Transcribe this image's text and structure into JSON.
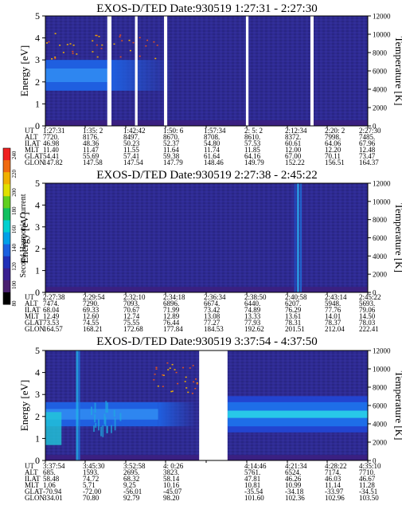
{
  "colorbar": {
    "label": "Second Harmonic Current",
    "ticks": [
      "240",
      "220",
      "200",
      "180",
      "160",
      "140",
      "120",
      "100",
      "80"
    ],
    "colors": [
      "#f02020",
      "#f06a10",
      "#f0b000",
      "#e0e000",
      "#60d020",
      "#10c060",
      "#00d0d0",
      "#00a0e8",
      "#1a60e0",
      "#2030b8",
      "#3a2090",
      "#4a2070",
      "#000000"
    ]
  },
  "chart_data": [
    {
      "type": "heatmap",
      "title": "EXOS-D/TED   Date:930519   1:27:31 - 2:27:30",
      "ylabel": "Energy [eV]",
      "y2label": "Temperature [K]",
      "ylim": [
        0,
        5
      ],
      "y2lim": [
        0,
        12000
      ],
      "yticks": [
        "0",
        "1",
        "2",
        "3",
        "4",
        "5"
      ],
      "y2ticks": [
        "0",
        "2000",
        "4000",
        "6000",
        "8000",
        "10000",
        "12000"
      ],
      "gaps": [
        [
          0.192,
          0.205
        ],
        [
          0.278,
          0.286
        ],
        [
          0.368,
          0.378
        ],
        [
          0.622,
          0.63
        ],
        [
          0.822,
          0.832
        ]
      ],
      "band": {
        "center_ev": 2.3,
        "width_ev": 1.4,
        "fade_start": 0.2,
        "fade_end": 0.4
      },
      "rows": [
        {
          "label": "UT",
          "values": [
            "1:27:31",
            "1:35: 2",
            "1:42:42",
            "1:50: 6",
            "1:57:34",
            "2: 5: 2",
            "2:12:34",
            "2:20: 2",
            "2:27:30"
          ]
        },
        {
          "label": "ALT",
          "values": [
            "7720.",
            "8176.",
            "8497.",
            "8670.",
            "8708.",
            "8610.",
            "8372.",
            "7998.",
            "7485."
          ]
        },
        {
          "label": "ILAT",
          "values": [
            "46.98",
            "48.36",
            "50.23",
            "52.37",
            "54.80",
            "57.53",
            "60.61",
            "64.06",
            "67.96"
          ]
        },
        {
          "label": "MLT",
          "values": [
            "11.40",
            "11.47",
            "11.55",
            "11.64",
            "11.74",
            "11.85",
            "12.00",
            "12.20",
            "12.48"
          ]
        },
        {
          "label": "GLAT",
          "values": [
            "54.41",
            "55.69",
            "57.41",
            "59.38",
            "61.64",
            "64.16",
            "67.00",
            "70.11",
            "73.47"
          ]
        },
        {
          "label": "GLON",
          "values": [
            "147.82",
            "147.58",
            "147.54",
            "147.79",
            "148.46",
            "149.79",
            "152.22",
            "156.51",
            "164.37"
          ]
        }
      ]
    },
    {
      "type": "heatmap",
      "title": "EXOS-D/TED   Date:930519   2:27:38 - 2:45:22",
      "ylabel": "Energy [eV]",
      "y2label": "Temperature [K]",
      "ylim": [
        0,
        5
      ],
      "y2lim": [
        0,
        12000
      ],
      "yticks": [
        "0",
        "1",
        "2",
        "3",
        "4",
        "5"
      ],
      "y2ticks": [
        "0",
        "2000",
        "4000",
        "6000",
        "8000",
        "10000",
        "12000"
      ],
      "gaps": [],
      "band": null,
      "rows": [
        {
          "label": "UT",
          "values": [
            "2:27:38",
            "2:29:54",
            "2:32:10",
            "2:34:18",
            "2:36:34",
            "2:38:50",
            "2:40:58",
            "2:43:14",
            "2:45:22"
          ]
        },
        {
          "label": "ALT",
          "values": [
            "7474.",
            "7290.",
            "7093.",
            "6896.",
            "6674.",
            "6440.",
            "6207.",
            "5948.",
            "5693."
          ]
        },
        {
          "label": "ILAT",
          "values": [
            "68.04",
            "69.33",
            "70.67",
            "71.99",
            "73.42",
            "74.89",
            "76.29",
            "77.76",
            "79.06"
          ]
        },
        {
          "label": "MLT",
          "values": [
            "12.49",
            "12.60",
            "12.74",
            "12.89",
            "13.08",
            "13.33",
            "13.61",
            "14.01",
            "14.50"
          ]
        },
        {
          "label": "GLAT",
          "values": [
            "73.53",
            "74.55",
            "75.55",
            "76.44",
            "77.27",
            "77.93",
            "78.31",
            "78.37",
            "78.03"
          ]
        },
        {
          "label": "GLON",
          "values": [
            "164.57",
            "168.21",
            "172.68",
            "177.84",
            "184.53",
            "192.62",
            "201.51",
            "212.04",
            "222.41"
          ]
        }
      ]
    },
    {
      "type": "heatmap",
      "title": "EXOS-D/TED   Date:930519   3:37:54 - 4:37:50",
      "ylabel": "Energy [eV]",
      "y2label": "Temperature [K]",
      "ylim": [
        0,
        5
      ],
      "y2lim": [
        0,
        12000
      ],
      "yticks": [
        "0",
        "1",
        "2",
        "3",
        "4",
        "5"
      ],
      "y2ticks": [
        "0",
        "2000",
        "4000",
        "6000",
        "8000",
        "10000",
        "12000"
      ],
      "gaps": [
        [
          0.477,
          0.565
        ]
      ],
      "band": {
        "center_ev": 2.1,
        "width_ev": 1.1,
        "fade_start": 0.35,
        "fade_end": 0.47,
        "resume": 0.565
      },
      "rows": [
        {
          "label": "UT",
          "values": [
            "3:37:54",
            "3:45:30",
            "3:52:58",
            "4: 0:26",
            "",
            "4:14:46",
            "4:21:34",
            "4:28:22",
            "4:35:10"
          ]
        },
        {
          "label": "ALT",
          "values": [
            "685.",
            "1593.",
            "2695.",
            "3823.",
            "",
            "5761.",
            "6524.",
            "7174.",
            "7710."
          ]
        },
        {
          "label": "ILAT",
          "values": [
            "58.48",
            "74.72",
            "68.32",
            "58.14",
            "",
            "47.81",
            "46.26",
            "46.03",
            "46.67"
          ]
        },
        {
          "label": "MLT",
          "values": [
            "1.06",
            "5.71",
            "9.25",
            "10.16",
            "",
            "10.81",
            "10.99",
            "11.14",
            "11.28"
          ]
        },
        {
          "label": "GLAT",
          "values": [
            "-70.94",
            "-72.00",
            "-56.01",
            "-45.07",
            "",
            "-35.54",
            "-34.18",
            "-33.97",
            "-34.51"
          ]
        },
        {
          "label": "GLON",
          "values": [
            "334.01",
            "70.80",
            "92.79",
            "98.20",
            "",
            "101.60",
            "102.36",
            "102.96",
            "103.50"
          ]
        }
      ]
    }
  ]
}
